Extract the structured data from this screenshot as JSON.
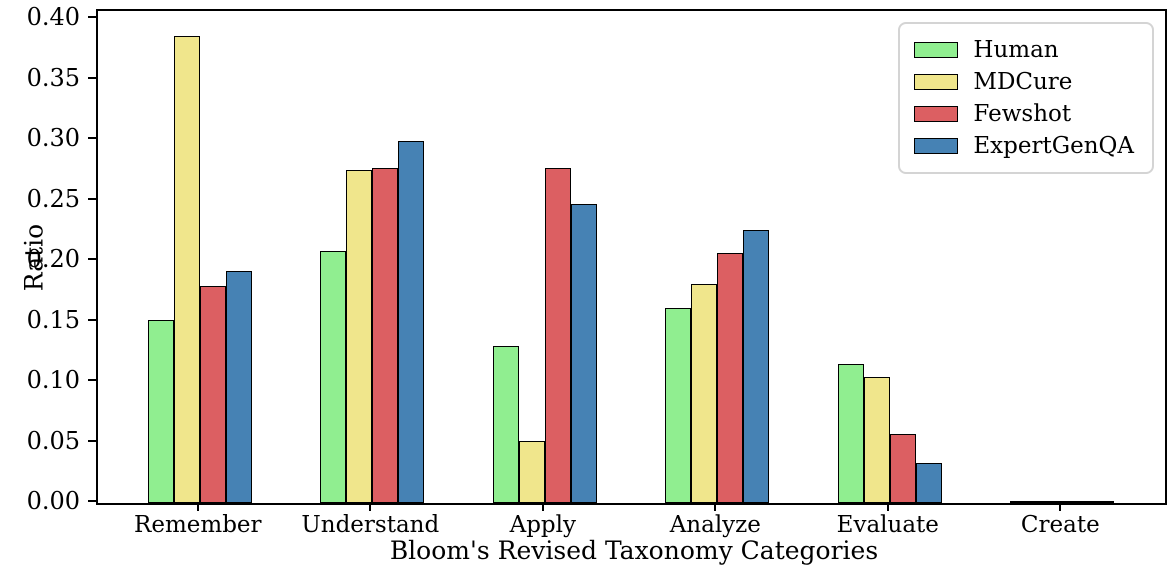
{
  "chart_data": {
    "type": "bar",
    "title": "",
    "xlabel": "Bloom's Revised Taxonomy Categories",
    "ylabel": "Ratio",
    "categories": [
      "Remember",
      "Understand",
      "Apply",
      "Analyze",
      "Evaluate",
      "Create"
    ],
    "series": [
      {
        "name": "Human",
        "color": "#90EE90",
        "values": [
          0.151,
          0.208,
          0.13,
          0.161,
          0.115,
          0.001
        ]
      },
      {
        "name": "MDCure",
        "color": "#F0E68C",
        "values": [
          0.386,
          0.275,
          0.051,
          0.181,
          0.104,
          0.002
        ]
      },
      {
        "name": "Fewshot",
        "color": "#DC5F62",
        "values": [
          0.179,
          0.277,
          0.277,
          0.207,
          0.057,
          0.001
        ]
      },
      {
        "name": "ExpertGenQA",
        "color": "#4682B4",
        "values": [
          0.192,
          0.299,
          0.247,
          0.226,
          0.033,
          0.001
        ]
      }
    ],
    "ylim": [
      0,
      0.405
    ],
    "yticks": [
      "0.00",
      "0.05",
      "0.10",
      "0.15",
      "0.20",
      "0.25",
      "0.30",
      "0.35",
      "0.40"
    ],
    "ytick_step": 0.05,
    "grid": false,
    "legend_position": "upper right",
    "bar_edge_color": "#000000"
  }
}
